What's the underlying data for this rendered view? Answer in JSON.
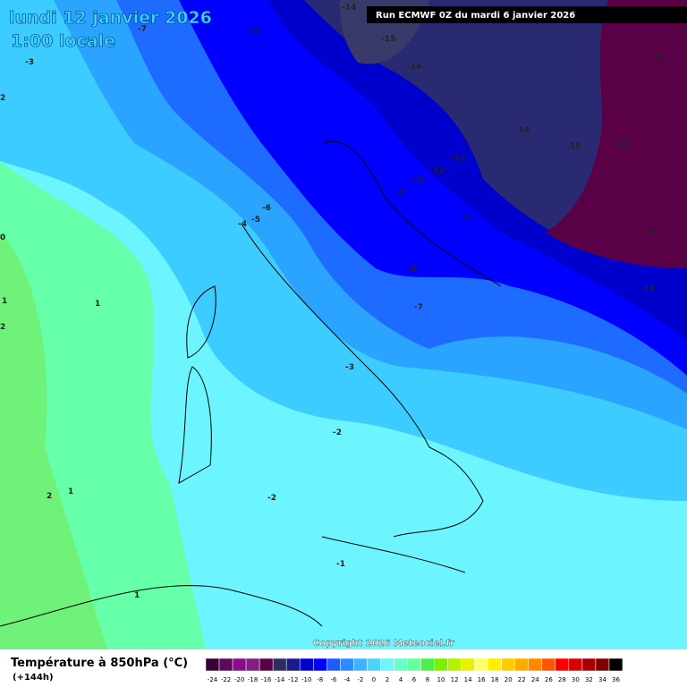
{
  "header": {
    "title": "lundi 12 janvier 2026",
    "subtitle": "1:00 locale",
    "run": "Run ECMWF 0Z du mardi 6 janvier 2026"
  },
  "contours": [
    -14,
    -11,
    -7,
    -15,
    -14,
    -17,
    -3,
    2,
    -14,
    -15,
    -16,
    -13,
    -12,
    -10,
    -9,
    -6,
    -5,
    -4,
    -11,
    -17,
    0,
    -8,
    -15,
    1,
    1,
    -7,
    2,
    -3,
    -2,
    2,
    1,
    -2,
    -1,
    1
  ],
  "copyright": "Copyright 2026 Meteociel.fr",
  "legend": {
    "title": "Température à 850hPa (°C)",
    "lead": "(+144h)",
    "labels": [
      -24,
      -22,
      -20,
      -18,
      -16,
      -14,
      -12,
      -10,
      -8,
      -6,
      -4,
      -2,
      0,
      2,
      4,
      6,
      8,
      10,
      12,
      14,
      16,
      18,
      20,
      22,
      24,
      26,
      28,
      30,
      32,
      34,
      36
    ],
    "colors": [
      "#3a0033",
      "#5a0a5a",
      "#8a0a8a",
      "#821e82",
      "#5c0046",
      "#2e2e5e",
      "#1a1a8a",
      "#0000cd",
      "#0000ff",
      "#1e5bff",
      "#2a8cff",
      "#3cb4ff",
      "#4ed2ff",
      "#6cf5ff",
      "#66ffcc",
      "#66ff99",
      "#4cf04c",
      "#7cf000",
      "#b4f000",
      "#e6f000",
      "#ffff66",
      "#ffee00",
      "#ffcc00",
      "#ffaa00",
      "#ff8800",
      "#ff5500",
      "#ff0000",
      "#d70000",
      "#aa0000",
      "#800000",
      "#000000"
    ]
  }
}
